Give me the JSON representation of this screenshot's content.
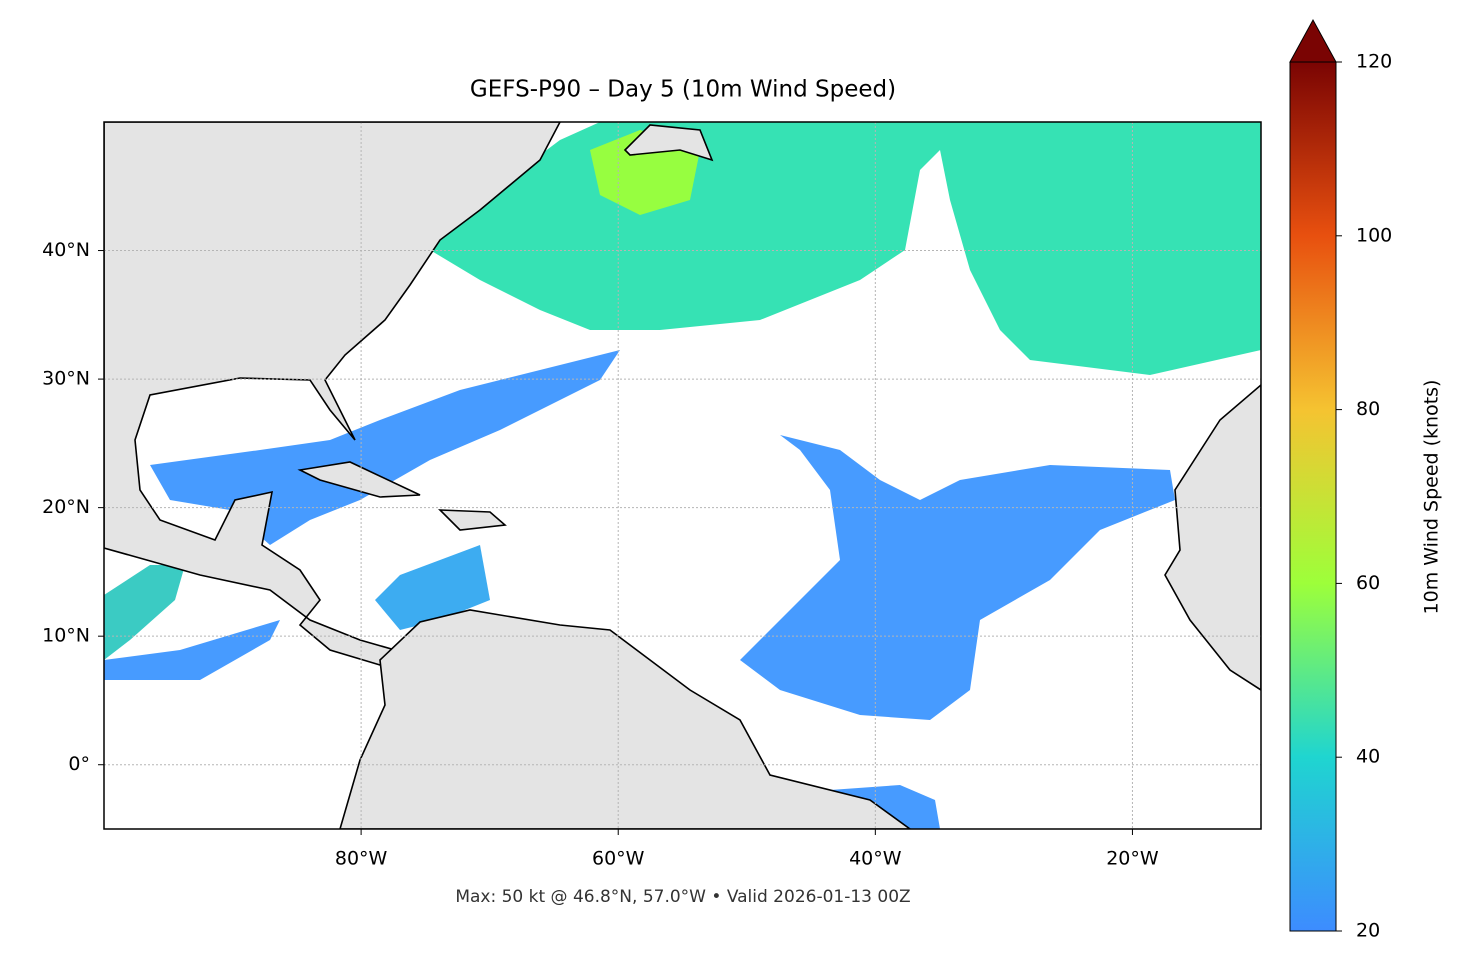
{
  "chart_data": {
    "type": "map",
    "title": "GEFS-P90 – Day 5 (10m Wind Speed)",
    "footer": "Max: 50 kt @ 46.8°N, 57.0°W • Valid 2026-01-13 00Z",
    "xlim": [
      -100,
      -10
    ],
    "ylim": [
      -5,
      50
    ],
    "xticks": [
      {
        "value": -80,
        "label": "80°W"
      },
      {
        "value": -60,
        "label": "60°W"
      },
      {
        "value": -40,
        "label": "40°W"
      },
      {
        "value": -20,
        "label": "20°W"
      }
    ],
    "yticks": [
      {
        "value": 0,
        "label": "0°"
      },
      {
        "value": 10,
        "label": "10°N"
      },
      {
        "value": 20,
        "label": "20°N"
      },
      {
        "value": 30,
        "label": "30°N"
      },
      {
        "value": 40,
        "label": "40°N"
      }
    ],
    "grid": true,
    "colorbar": {
      "label": "10m Wind Speed (knots)",
      "lim": [
        20,
        120
      ],
      "ticks": [
        20,
        40,
        60,
        80,
        100,
        120
      ],
      "colors": [
        "#3d8cff",
        "#1fd5d0",
        "#9dff3a",
        "#f5c331",
        "#e8500f",
        "#7a0403"
      ]
    }
  }
}
